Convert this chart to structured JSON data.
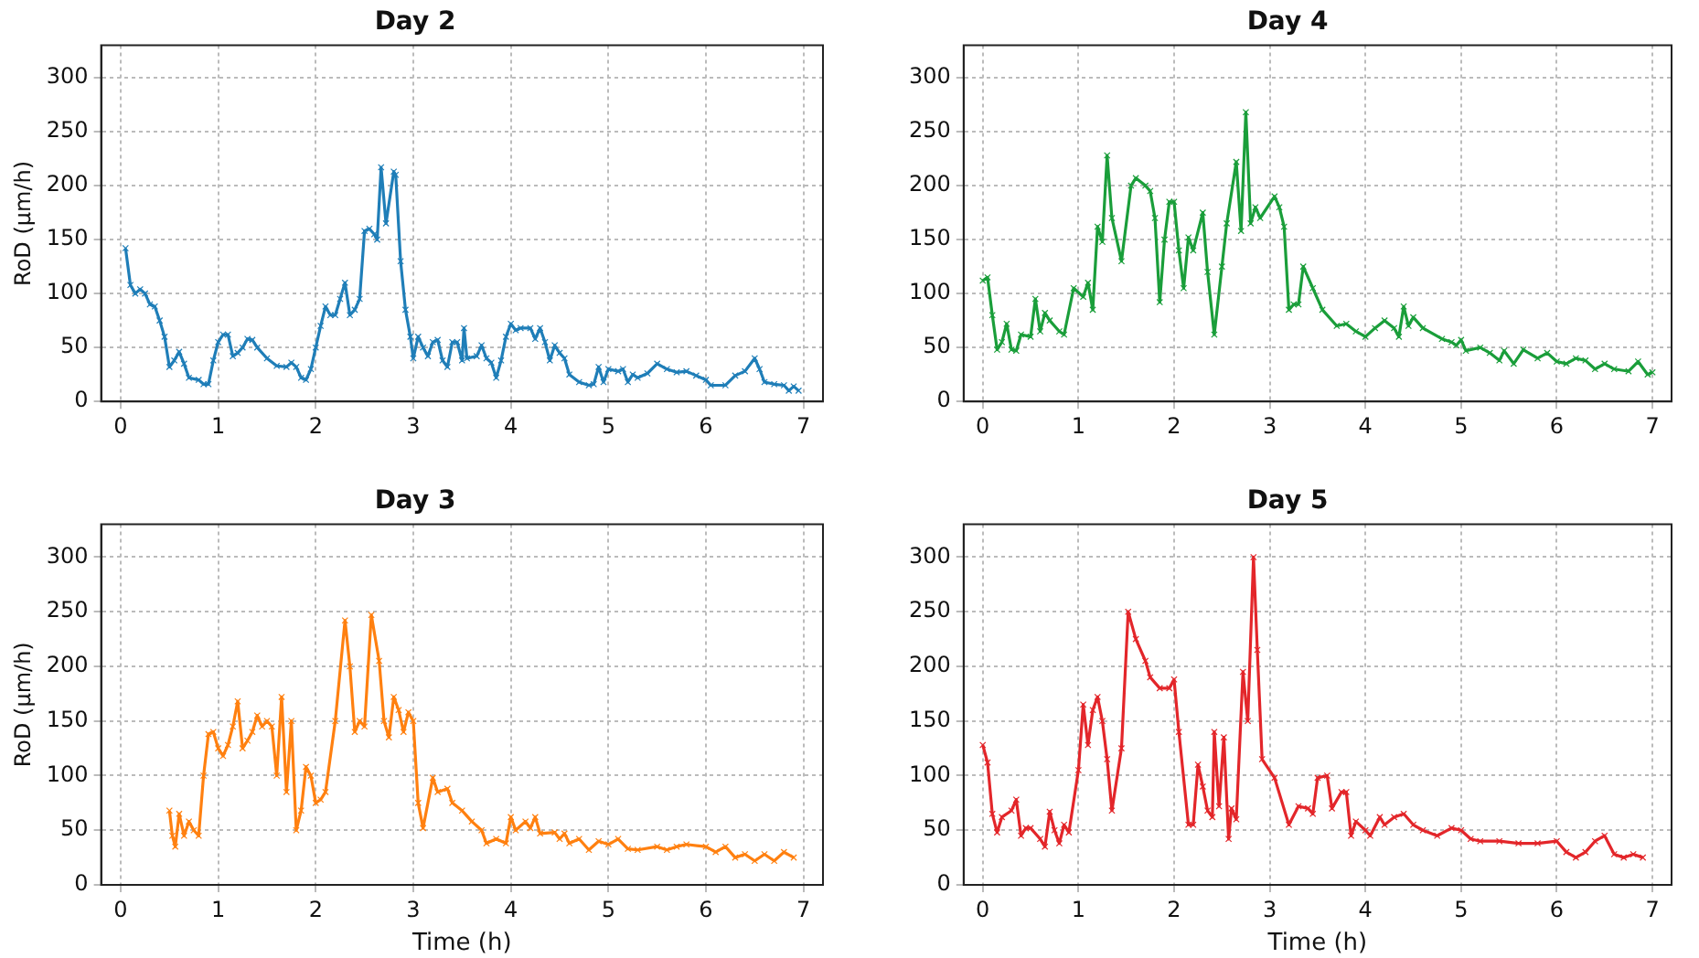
{
  "chart_data": [
    {
      "type": "line",
      "title": "Day 2",
      "ylabel": "RoD (μm/h)",
      "xlim": [
        -0.2,
        7.2
      ],
      "ylim": [
        0,
        330
      ],
      "xticks": [
        0,
        1,
        2,
        3,
        4,
        5,
        6,
        7
      ],
      "yticks": [
        0,
        50,
        100,
        150,
        200,
        250,
        300
      ],
      "grid": true,
      "legend": false,
      "marker": "cross",
      "line_style": "solid",
      "series": [
        {
          "color": "#1f7eb8",
          "x": [
            0.05,
            0.1,
            0.15,
            0.2,
            0.25,
            0.3,
            0.35,
            0.4,
            0.45,
            0.5,
            0.55,
            0.6,
            0.65,
            0.7,
            0.8,
            0.85,
            0.9,
            0.95,
            1.0,
            1.05,
            1.1,
            1.15,
            1.2,
            1.25,
            1.3,
            1.35,
            1.4,
            1.5,
            1.6,
            1.7,
            1.75,
            1.8,
            1.85,
            1.9,
            1.95,
            2.0,
            2.05,
            2.1,
            2.15,
            2.2,
            2.25,
            2.3,
            2.35,
            2.4,
            2.45,
            2.5,
            2.55,
            2.6,
            2.63,
            2.67,
            2.72,
            2.8,
            2.82,
            2.87,
            2.92,
            2.97,
            3.0,
            3.05,
            3.1,
            3.15,
            3.2,
            3.25,
            3.3,
            3.35,
            3.4,
            3.45,
            3.5,
            3.52,
            3.55,
            3.65,
            3.7,
            3.75,
            3.8,
            3.85,
            3.9,
            3.95,
            4.0,
            4.05,
            4.1,
            4.2,
            4.25,
            4.3,
            4.35,
            4.4,
            4.45,
            4.5,
            4.55,
            4.6,
            4.7,
            4.8,
            4.85,
            4.9,
            4.95,
            5.0,
            5.1,
            5.15,
            5.2,
            5.25,
            5.3,
            5.4,
            5.5,
            5.6,
            5.7,
            5.8,
            5.9,
            6.0,
            6.05,
            6.2,
            6.3,
            6.4,
            6.5,
            6.55,
            6.6,
            6.7,
            6.8,
            6.85,
            6.9,
            6.95
          ],
          "values": [
            142,
            108,
            100,
            104,
            100,
            90,
            88,
            75,
            60,
            32,
            38,
            46,
            35,
            22,
            20,
            16,
            16,
            38,
            55,
            62,
            62,
            42,
            45,
            50,
            58,
            57,
            50,
            40,
            33,
            32,
            36,
            32,
            22,
            20,
            30,
            50,
            70,
            88,
            80,
            80,
            95,
            110,
            80,
            85,
            95,
            158,
            160,
            155,
            150,
            217,
            165,
            213,
            210,
            130,
            85,
            60,
            40,
            60,
            50,
            42,
            55,
            57,
            38,
            32,
            55,
            55,
            38,
            68,
            40,
            42,
            52,
            40,
            36,
            22,
            38,
            60,
            72,
            66,
            68,
            68,
            58,
            68,
            55,
            38,
            52,
            45,
            40,
            25,
            18,
            15,
            16,
            32,
            18,
            30,
            28,
            30,
            18,
            25,
            22,
            26,
            35,
            30,
            27,
            28,
            24,
            20,
            15,
            15,
            24,
            28,
            40,
            30,
            18,
            16,
            15,
            10,
            14,
            10
          ]
        }
      ]
    },
    {
      "type": "line",
      "title": "Day 4",
      "xlim": [
        -0.2,
        7.2
      ],
      "ylim": [
        0,
        330
      ],
      "xticks": [
        0,
        1,
        2,
        3,
        4,
        5,
        6,
        7
      ],
      "yticks": [
        0,
        50,
        100,
        150,
        200,
        250,
        300
      ],
      "grid": true,
      "legend": false,
      "marker": "cross",
      "line_style": "solid",
      "series": [
        {
          "color": "#1a9e3a",
          "x": [
            0.0,
            0.05,
            0.1,
            0.15,
            0.2,
            0.25,
            0.3,
            0.35,
            0.4,
            0.5,
            0.55,
            0.6,
            0.65,
            0.7,
            0.8,
            0.85,
            0.95,
            1.05,
            1.1,
            1.15,
            1.2,
            1.25,
            1.3,
            1.35,
            1.45,
            1.55,
            1.6,
            1.7,
            1.75,
            1.8,
            1.85,
            1.9,
            1.95,
            2.0,
            2.05,
            2.1,
            2.15,
            2.2,
            2.3,
            2.35,
            2.42,
            2.5,
            2.55,
            2.65,
            2.7,
            2.75,
            2.8,
            2.85,
            2.9,
            3.05,
            3.1,
            3.15,
            3.2,
            3.25,
            3.3,
            3.35,
            3.45,
            3.55,
            3.7,
            3.8,
            3.9,
            4.0,
            4.1,
            4.2,
            4.3,
            4.35,
            4.4,
            4.45,
            4.5,
            4.6,
            4.8,
            4.9,
            4.95,
            5.0,
            5.05,
            5.2,
            5.3,
            5.4,
            5.45,
            5.55,
            5.65,
            5.8,
            5.9,
            6.0,
            6.1,
            6.2,
            6.3,
            6.4,
            6.5,
            6.6,
            6.75,
            6.85,
            6.95,
            7.0
          ],
          "values": [
            112,
            115,
            80,
            48,
            55,
            72,
            48,
            47,
            62,
            60,
            95,
            65,
            82,
            75,
            65,
            62,
            105,
            97,
            110,
            85,
            162,
            148,
            228,
            170,
            130,
            200,
            207,
            200,
            195,
            170,
            92,
            150,
            185,
            185,
            140,
            105,
            152,
            140,
            175,
            120,
            62,
            125,
            165,
            222,
            158,
            268,
            165,
            180,
            170,
            190,
            180,
            162,
            85,
            90,
            90,
            125,
            105,
            85,
            70,
            72,
            65,
            60,
            68,
            75,
            68,
            60,
            88,
            70,
            78,
            68,
            58,
            55,
            52,
            57,
            47,
            50,
            45,
            38,
            47,
            35,
            48,
            40,
            45,
            37,
            35,
            40,
            38,
            30,
            35,
            30,
            28,
            37,
            25,
            27
          ]
        }
      ]
    },
    {
      "type": "line",
      "title": "Day 3",
      "xlabel": "Time (h)",
      "ylabel": "RoD (μm/h)",
      "xlim": [
        -0.2,
        7.2
      ],
      "ylim": [
        0,
        330
      ],
      "xticks": [
        0,
        1,
        2,
        3,
        4,
        5,
        6,
        7
      ],
      "yticks": [
        0,
        50,
        100,
        150,
        200,
        250,
        300
      ],
      "grid": true,
      "legend": false,
      "marker": "cross",
      "line_style": "solid",
      "series": [
        {
          "color": "#ff8010",
          "x": [
            0.5,
            0.53,
            0.56,
            0.6,
            0.65,
            0.7,
            0.75,
            0.8,
            0.85,
            0.9,
            0.95,
            1.0,
            1.05,
            1.1,
            1.15,
            1.2,
            1.25,
            1.3,
            1.35,
            1.4,
            1.45,
            1.5,
            1.55,
            1.6,
            1.65,
            1.7,
            1.75,
            1.8,
            1.85,
            1.9,
            1.95,
            2.0,
            2.05,
            2.1,
            2.2,
            2.3,
            2.35,
            2.4,
            2.45,
            2.5,
            2.57,
            2.65,
            2.7,
            2.75,
            2.8,
            2.85,
            2.9,
            2.95,
            3.0,
            3.05,
            3.1,
            3.2,
            3.25,
            3.35,
            3.4,
            3.5,
            3.6,
            3.7,
            3.75,
            3.85,
            3.95,
            4.0,
            4.05,
            4.15,
            4.2,
            4.25,
            4.3,
            4.45,
            4.5,
            4.55,
            4.6,
            4.7,
            4.8,
            4.9,
            5.0,
            5.1,
            5.2,
            5.3,
            5.5,
            5.6,
            5.7,
            5.8,
            6.0,
            6.1,
            6.2,
            6.3,
            6.4,
            6.5,
            6.6,
            6.7,
            6.8,
            6.9
          ],
          "values": [
            68,
            45,
            35,
            65,
            45,
            58,
            50,
            45,
            100,
            138,
            140,
            125,
            118,
            128,
            145,
            168,
            125,
            132,
            140,
            155,
            145,
            150,
            145,
            100,
            172,
            85,
            150,
            50,
            68,
            108,
            100,
            75,
            78,
            85,
            150,
            242,
            200,
            140,
            150,
            145,
            247,
            205,
            150,
            135,
            172,
            160,
            140,
            158,
            150,
            75,
            52,
            98,
            85,
            88,
            75,
            68,
            58,
            50,
            38,
            42,
            38,
            62,
            50,
            58,
            52,
            62,
            47,
            48,
            42,
            47,
            38,
            42,
            32,
            40,
            37,
            42,
            33,
            32,
            35,
            32,
            35,
            37,
            35,
            30,
            35,
            25,
            28,
            22,
            28,
            22,
            30,
            25
          ]
        }
      ]
    },
    {
      "type": "line",
      "title": "Day 5",
      "xlabel": "Time (h)",
      "xlim": [
        -0.2,
        7.2
      ],
      "ylim": [
        0,
        330
      ],
      "xticks": [
        0,
        1,
        2,
        3,
        4,
        5,
        6,
        7
      ],
      "yticks": [
        0,
        50,
        100,
        150,
        200,
        250,
        300
      ],
      "grid": true,
      "legend": false,
      "marker": "cross",
      "line_style": "solid",
      "series": [
        {
          "color": "#e3262a",
          "x": [
            0.0,
            0.05,
            0.1,
            0.15,
            0.2,
            0.3,
            0.35,
            0.4,
            0.45,
            0.5,
            0.6,
            0.65,
            0.7,
            0.75,
            0.8,
            0.85,
            0.9,
            1.0,
            1.05,
            1.1,
            1.15,
            1.2,
            1.25,
            1.3,
            1.35,
            1.45,
            1.52,
            1.6,
            1.7,
            1.75,
            1.85,
            1.95,
            2.0,
            2.05,
            2.15,
            2.2,
            2.25,
            2.3,
            2.35,
            2.4,
            2.42,
            2.47,
            2.52,
            2.57,
            2.6,
            2.65,
            2.72,
            2.77,
            2.83,
            2.87,
            2.92,
            3.05,
            3.2,
            3.3,
            3.4,
            3.45,
            3.5,
            3.6,
            3.65,
            3.75,
            3.8,
            3.85,
            3.9,
            4.0,
            4.05,
            4.15,
            4.2,
            4.3,
            4.4,
            4.5,
            4.6,
            4.75,
            4.9,
            5.0,
            5.1,
            5.2,
            5.4,
            5.6,
            5.8,
            6.0,
            6.1,
            6.2,
            6.3,
            6.4,
            6.5,
            6.6,
            6.7,
            6.8,
            6.9
          ],
          "values": [
            128,
            112,
            65,
            48,
            62,
            68,
            78,
            45,
            52,
            52,
            42,
            35,
            67,
            50,
            38,
            55,
            48,
            105,
            165,
            128,
            160,
            172,
            150,
            115,
            68,
            125,
            250,
            225,
            205,
            190,
            180,
            180,
            188,
            140,
            55,
            55,
            110,
            90,
            68,
            62,
            140,
            72,
            135,
            42,
            70,
            60,
            195,
            150,
            300,
            215,
            115,
            98,
            55,
            72,
            70,
            65,
            98,
            100,
            70,
            85,
            85,
            45,
            58,
            50,
            45,
            62,
            55,
            62,
            65,
            55,
            50,
            45,
            52,
            50,
            42,
            40,
            40,
            38,
            38,
            40,
            30,
            25,
            30,
            40,
            45,
            28,
            25,
            28,
            25
          ]
        }
      ]
    }
  ]
}
